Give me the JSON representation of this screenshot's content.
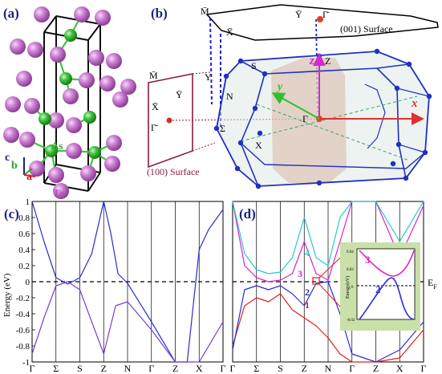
{
  "panels": {
    "a": {
      "label": "(a)",
      "atom_label_as": "As",
      "atom_label_ta": "Ta",
      "axis_c": "c",
      "axis_b": "b",
      "axis_a": "a",
      "colors": {
        "ta": "#c879cf",
        "as": "#3ac63a"
      }
    },
    "b": {
      "label": "(b)",
      "surface_001": "(001) Surface",
      "surface_100": "(100) Surface",
      "pts": {
        "M_bar_top": "M̄",
        "X_bar_top": "X̄",
        "Y_bar_top": "Ȳ",
        "Gamma_bar_top": "Γ̄",
        "M_bar_left": "M̄",
        "Y_bar_left": "Ȳ",
        "X_bar_left": "X̄",
        "Gamma_bar_left": "Γ̄",
        "S": "S",
        "Y": "Y",
        "N": "N",
        "Sigma": "Σ",
        "X": "X",
        "Z": "Z",
        "Gamma": "Γ"
      },
      "axes": {
        "x": "x",
        "y": "y",
        "z": "z"
      }
    },
    "c": {
      "label": "(c)",
      "ylabel": "Energy (eV)",
      "yticks": [
        "1",
        "0.8",
        "0.6",
        "0.4",
        "0.2",
        "0",
        "-0.2",
        "-0.4",
        "-0.6",
        "-0.8",
        "-1"
      ],
      "xticks": [
        "Γ",
        "Σ",
        "S",
        "Z",
        "N",
        "Γ",
        "Z",
        "X",
        "Γ"
      ]
    },
    "d": {
      "label": "(d)",
      "ef_label": "E",
      "ef_sub": "F",
      "xticks": [
        "Γ",
        "Σ",
        "S",
        "Z",
        "N",
        "Γ",
        "Z",
        "X",
        "Γ"
      ],
      "band_labels": [
        "1",
        "2",
        "3",
        "4"
      ],
      "inset": {
        "ylabel": "Energy(eV)",
        "yticks": [
          "0.04",
          "0.02",
          "0",
          "-0.02"
        ],
        "band_labels": [
          "2",
          "3"
        ]
      }
    }
  },
  "chart_data": [
    {
      "type": "line",
      "title": "",
      "xlabel": "",
      "ylabel": "Energy (eV)",
      "ylim": [
        -1,
        1
      ],
      "categories": [
        "Γ",
        "Σ",
        "S",
        "Z",
        "N",
        "Γ",
        "Z",
        "X",
        "Γ"
      ],
      "series": [
        {
          "color": "#2b2bd6",
          "x": [
            0,
            0.5,
            1,
            1.5,
            2,
            2.5,
            3,
            3.3,
            3.6,
            4,
            5,
            6,
            6.5,
            7,
            7.4,
            8
          ],
          "y": [
            1,
            0.5,
            0.05,
            -0.03,
            0.05,
            0.35,
            1,
            0.6,
            0.1,
            -0.02,
            -0.5,
            -1,
            -1,
            0.4,
            0.65,
            0.9
          ]
        },
        {
          "color": "#7b3fd0",
          "x": [
            0,
            0.5,
            1,
            1.5,
            2,
            2.5,
            3,
            3.5,
            4,
            5,
            6,
            7,
            8
          ],
          "y": [
            -0.9,
            -0.45,
            -0.05,
            0.0,
            -0.1,
            -0.5,
            -0.9,
            -0.3,
            -0.25,
            -0.6,
            -1,
            -1,
            -0.5
          ]
        }
      ]
    },
    {
      "type": "line",
      "title": "",
      "xlabel": "",
      "ylabel": "",
      "ylim": [
        -1,
        1
      ],
      "categories": [
        "Γ",
        "Σ",
        "S",
        "Z",
        "N",
        "Γ",
        "Z",
        "X",
        "Γ"
      ],
      "series": [
        {
          "name": "1",
          "color": "#e02020",
          "x": [
            0,
            0.5,
            1,
            1.5,
            2,
            2.5,
            3,
            3.5,
            4,
            4.5,
            5,
            6,
            7,
            8
          ],
          "y": [
            -0.8,
            -0.3,
            -0.2,
            -0.25,
            -0.15,
            -0.35,
            -0.45,
            -0.55,
            -0.7,
            -0.9,
            -1,
            -1,
            -0.95,
            -0.6
          ]
        },
        {
          "name": "2",
          "color": "#2b2bd6",
          "x": [
            0,
            0.5,
            1,
            1.5,
            2,
            2.5,
            3,
            3.5,
            4,
            4.5,
            5,
            6,
            7,
            8
          ],
          "y": [
            -0.85,
            -0.1,
            -0.05,
            -0.1,
            -0.05,
            -0.15,
            -0.3,
            -0.02,
            0.0,
            -0.4,
            -0.9,
            -1,
            -0.85,
            -0.5
          ]
        },
        {
          "name": "3",
          "color": "#e020d0",
          "x": [
            0,
            0.5,
            1,
            1.5,
            2,
            2.5,
            3,
            3.5,
            4,
            4.5,
            5,
            6,
            7,
            8
          ],
          "y": [
            1,
            0.2,
            0.05,
            0.0,
            0.02,
            0.1,
            0.5,
            0.1,
            0.02,
            0.5,
            1,
            1,
            0.3,
            0.95
          ]
        },
        {
          "name": "4",
          "color": "#28c8c8",
          "x": [
            0,
            0.5,
            1,
            1.5,
            2,
            2.5,
            3,
            3.5,
            4,
            4.5,
            5,
            6,
            7,
            8
          ],
          "y": [
            1,
            0.35,
            0.15,
            0.1,
            0.12,
            0.3,
            0.8,
            0.3,
            0.2,
            0.8,
            1,
            1,
            0.5,
            1
          ]
        }
      ]
    }
  ]
}
